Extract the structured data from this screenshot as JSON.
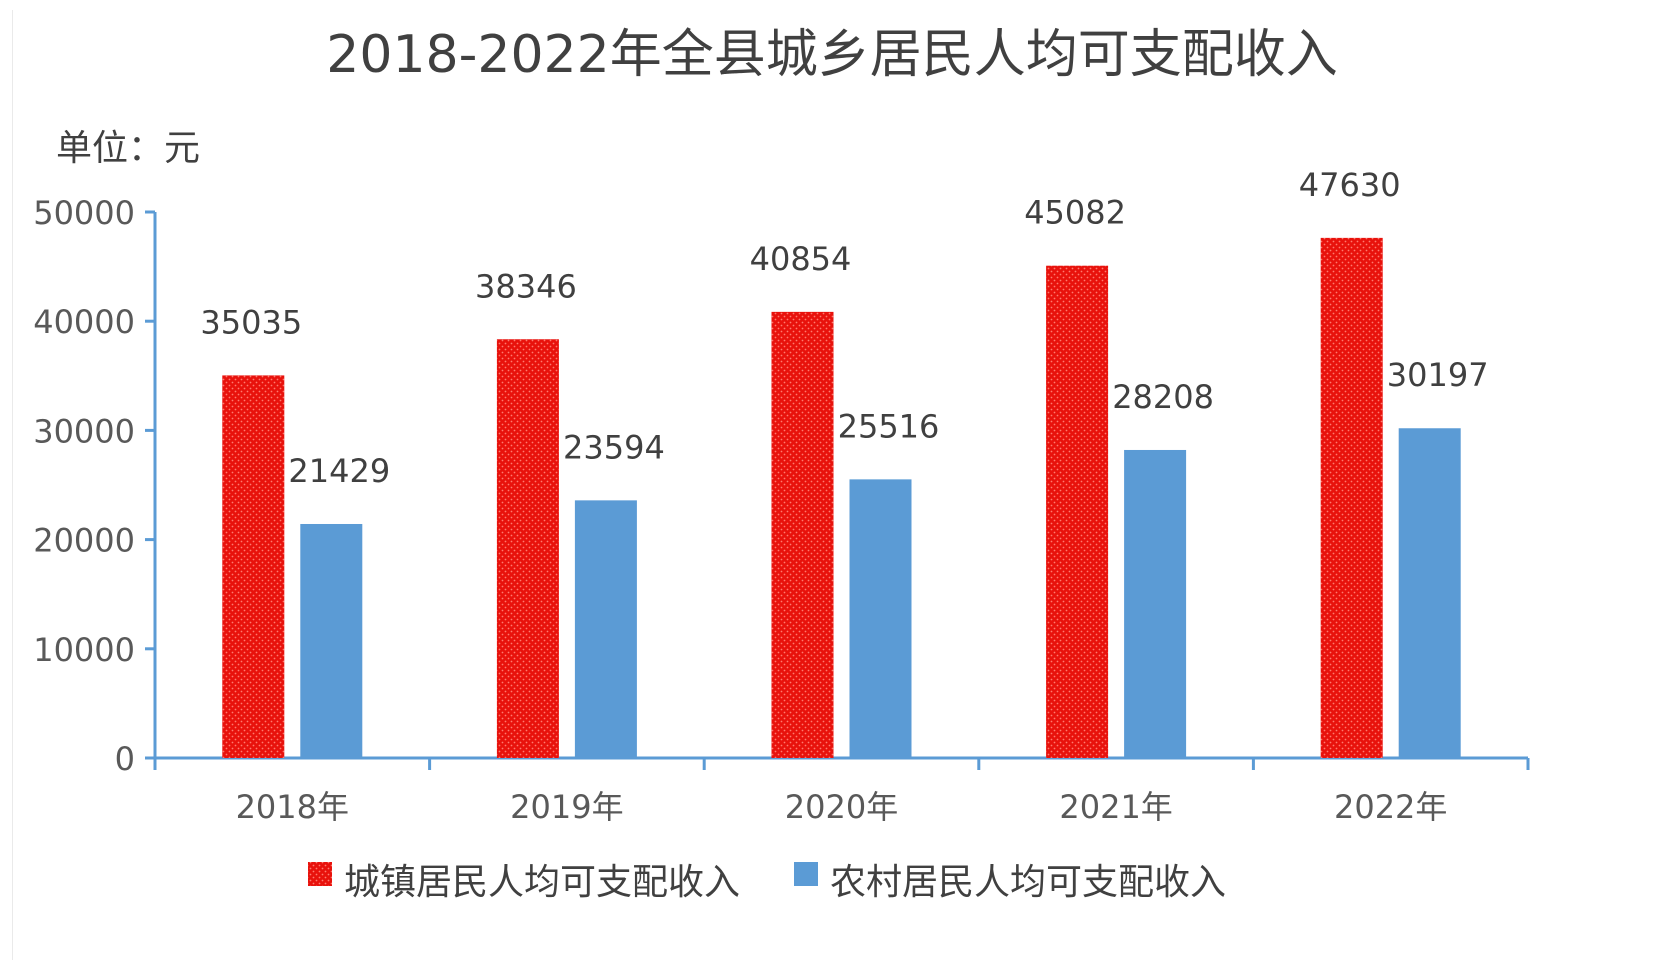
{
  "chart_data": {
    "type": "bar",
    "title": "2018-2022年全县城乡居民人均可支配收入",
    "unit_label": "单位：元",
    "categories": [
      "2018年",
      "2019年",
      "2020年",
      "2021年",
      "2022年"
    ],
    "series": [
      {
        "name": "城镇居民人均可支配收入",
        "values": [
          35035,
          38346,
          40854,
          45082,
          47630
        ],
        "color": "#e8120c",
        "pattern": "dotted"
      },
      {
        "name": "农村居民人均可支配收入",
        "values": [
          21429,
          23594,
          25516,
          28208,
          30197
        ],
        "color": "#5b9bd5"
      }
    ],
    "ylim": [
      0,
      50000
    ],
    "yticks": [
      "0",
      "10000",
      "20000",
      "30000",
      "40000",
      "50000"
    ],
    "ytick_values": [
      0,
      10000,
      20000,
      30000,
      40000,
      50000
    ],
    "grid": false,
    "legend_position": "bottom",
    "axis_color": "#5b9bd5"
  }
}
